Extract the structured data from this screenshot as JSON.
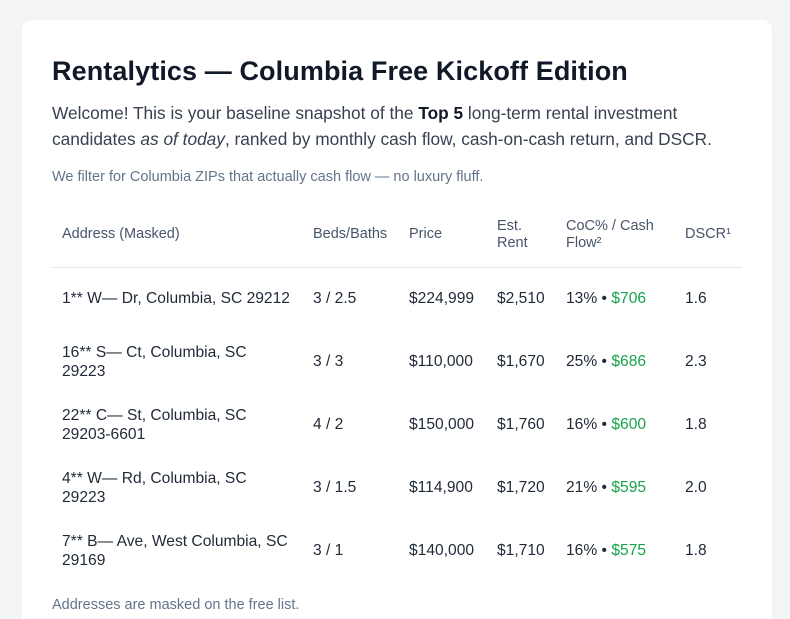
{
  "page": {
    "title": "Rentalytics — Columbia Free Kickoff Edition",
    "intro": {
      "welcome": "Welcome! This is your baseline snapshot of the ",
      "top5": "Top 5",
      "mid": " long-term rental investment candidates ",
      "as_of": "as of today",
      "end": ", ranked by monthly cash flow, cash-on-cash return, and DSCR."
    },
    "filter_note": "We filter for Columbia ZIPs that actually cash flow — no luxury fluff.",
    "footnote": "Addresses are masked on the free list."
  },
  "table": {
    "headers": {
      "address": "Address (Masked)",
      "beds_baths": "Beds/Baths",
      "price": "Price",
      "rent": "Est. Rent",
      "coc": "CoC% / Cash Flow²",
      "dscr": "DSCR¹"
    },
    "separator": " • ",
    "rows": [
      {
        "address": "1** W— Dr, Columbia, SC 29212",
        "beds_baths": "3 / 2.5",
        "price": "$224,999",
        "rent": "$2,510",
        "coc": "13%",
        "cash_flow": "$706",
        "dscr": "1.6"
      },
      {
        "address": "16** S— Ct, Columbia, SC 29223",
        "beds_baths": "3 / 3",
        "price": "$110,000",
        "rent": "$1,670",
        "coc": "25%",
        "cash_flow": "$686",
        "dscr": "2.3"
      },
      {
        "address": "22** C— St, Columbia, SC 29203-6601",
        "beds_baths": "4 / 2",
        "price": "$150,000",
        "rent": "$1,760",
        "coc": "16%",
        "cash_flow": "$600",
        "dscr": "1.8"
      },
      {
        "address": "4** W— Rd, Columbia, SC 29223",
        "beds_baths": "3 / 1.5",
        "price": "$114,900",
        "rent": "$1,720",
        "coc": "21%",
        "cash_flow": "$595",
        "dscr": "2.0"
      },
      {
        "address": "7** B— Ave, West Columbia, SC 29169",
        "beds_baths": "3 / 1",
        "price": "$140,000",
        "rent": "$1,710",
        "coc": "16%",
        "cash_flow": "$575",
        "dscr": "1.8"
      }
    ]
  },
  "colors": {
    "cash_flow": "#16a34a",
    "title": "#111827",
    "muted": "#64748b",
    "background": "#f3f4f6"
  }
}
